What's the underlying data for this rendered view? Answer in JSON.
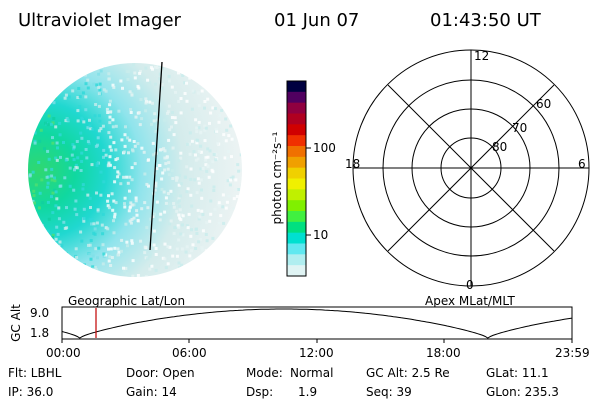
{
  "header": {
    "instrument": "Ultraviolet Imager",
    "date": "01 Jun 07",
    "time": "01:43:50 UT"
  },
  "colorbar": {
    "unit_label": "photon cm⁻²s⁻¹",
    "ticks": [
      "100",
      "10"
    ],
    "colors": [
      "#000040",
      "#500060",
      "#900040",
      "#b00020",
      "#d00000",
      "#f03000",
      "#f07000",
      "#f0a000",
      "#f0d000",
      "#f0f000",
      "#c0f000",
      "#80f000",
      "#40f040",
      "#00e080",
      "#00e0d0",
      "#60e8f0",
      "#b0eef0",
      "#e0f4f4"
    ]
  },
  "polar_grid": {
    "labels": [
      "12",
      "18",
      "6",
      "0",
      "60",
      "70",
      "80"
    ]
  },
  "labels": {
    "geo": "Geographic Lat/Lon",
    "apex": "Apex MLat/MLT"
  },
  "altitude_plot": {
    "ylabel": "GC Alt",
    "y_ticks": [
      "9.0",
      "1.8"
    ],
    "x_ticks": [
      "00:00",
      "06:00",
      "12:00",
      "18:00",
      "23:59"
    ]
  },
  "footer": {
    "flt": "Flt: LBHL",
    "ip": "IP: 36.0",
    "door": "Door: Open",
    "gain": "Gain: 14",
    "mode_label": "Mode:",
    "mode_value": "Normal",
    "dsp_label": "Dsp:",
    "dsp_value": "1.9",
    "gcalt": "GC Alt: 2.5 Re",
    "seq": "Seq: 39",
    "glat": "GLat: 11.1",
    "glon": "GLon: 235.3"
  },
  "colors": {
    "marker": "#c00000"
  }
}
